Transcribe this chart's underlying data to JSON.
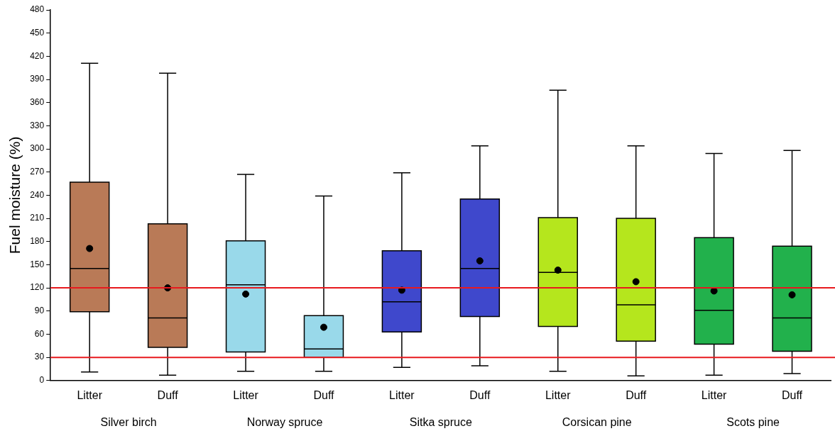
{
  "chart_data": {
    "type": "box",
    "ylabel": "Fuel moisture (%)",
    "categories": [
      "Litter",
      "Duff",
      "Litter",
      "Duff",
      "Litter",
      "Duff",
      "Litter",
      "Duff",
      "Litter",
      "Duff"
    ],
    "colors": [
      "#b97a57",
      "#b97a57",
      "#99d9ea",
      "#99d9ea",
      "#3f48cc",
      "#3f48cc",
      "#b5e61d",
      "#b5e61d",
      "#22b14c",
      "#22b14c"
    ],
    "boxes": [
      {
        "low": 11,
        "q1": 89,
        "median": 145,
        "q3": 257,
        "high": 411,
        "mean": 171
      },
      {
        "low": 7,
        "q1": 43,
        "median": 81,
        "q3": 203,
        "high": 398,
        "mean": 120
      },
      {
        "low": 12,
        "q1": 37,
        "median": 124,
        "q3": 181,
        "high": 267,
        "mean": 112
      },
      {
        "low": 12,
        "q1": 30,
        "median": 41,
        "q3": 84,
        "high": 239,
        "mean": 69
      },
      {
        "low": 17,
        "q1": 63,
        "median": 102,
        "q3": 168,
        "high": 269,
        "mean": 117
      },
      {
        "low": 19,
        "q1": 83,
        "median": 145,
        "q3": 235,
        "high": 304,
        "mean": 155
      },
      {
        "low": 12,
        "q1": 70,
        "median": 140,
        "q3": 211,
        "high": 376,
        "mean": 143
      },
      {
        "low": 6,
        "q1": 51,
        "median": 98,
        "q3": 210,
        "high": 304,
        "mean": 128
      },
      {
        "low": 7,
        "q1": 47,
        "median": 91,
        "q3": 185,
        "high": 294,
        "mean": 116
      },
      {
        "low": 9,
        "q1": 38,
        "median": 81,
        "q3": 174,
        "high": 298,
        "mean": 111
      }
    ],
    "ylim": [
      0,
      480
    ],
    "yticks": [
      0,
      30,
      60,
      90,
      120,
      150,
      180,
      210,
      240,
      270,
      300,
      330,
      360,
      390,
      420,
      450,
      480
    ],
    "ref_lines": [
      {
        "axis": "y",
        "value": 120,
        "color": "#e8191e"
      },
      {
        "axis": "y",
        "value": 30,
        "color": "#e8191e"
      }
    ],
    "annotations": [
      "Silver birch",
      "Norway spruce",
      "Sitka spruce",
      "Corsican pine",
      "Scots pine"
    ],
    "marker": "circle",
    "grid": false,
    "legend": false
  }
}
